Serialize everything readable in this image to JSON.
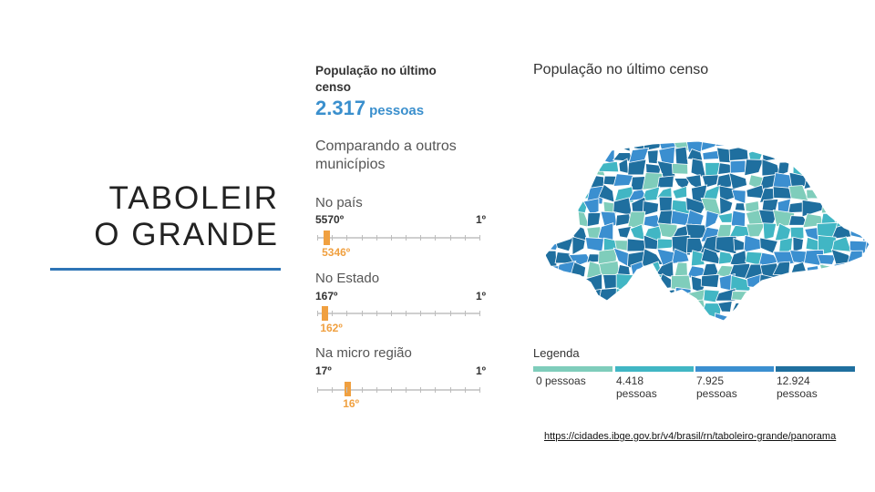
{
  "slide": {
    "title_line1": "TABOLEIR",
    "title_line2": "O GRANDE",
    "link": "https://cidades.ibge.gov.br/v4/brasil/rn/taboleiro-grande/panorama"
  },
  "panel": {
    "heading": "População no último censo",
    "population_value": "2.317",
    "population_unit": "pessoas",
    "compare_heading": "Comparando a outros municípios",
    "rankings": [
      {
        "label": "No país",
        "range_left": "5570º",
        "range_right": "1º",
        "value": "5346º",
        "fraction": 0.04
      },
      {
        "label": "No Estado",
        "range_left": "167º",
        "range_right": "1º",
        "value": "162º",
        "fraction": 0.03
      },
      {
        "label": "Na micro região",
        "range_left": "17º",
        "range_right": "1º",
        "value": "16º",
        "fraction": 0.17
      }
    ]
  },
  "map": {
    "title": "População no último censo",
    "legend_title": "Legenda",
    "legend": [
      {
        "label_line1": "0 pessoas",
        "label_line2": "",
        "color": "#7fcdbb"
      },
      {
        "label_line1": "4.418",
        "label_line2": "pessoas",
        "color": "#41b6c4"
      },
      {
        "label_line1": "7.925",
        "label_line2": "pessoas",
        "color": "#3b8fd0"
      },
      {
        "label_line1": "12.924",
        "label_line2": "pessoas",
        "color": "#1f6f9f"
      }
    ],
    "colors": [
      "#7fcdbb",
      "#41b6c4",
      "#3b8fd0",
      "#1f6f9f"
    ]
  }
}
